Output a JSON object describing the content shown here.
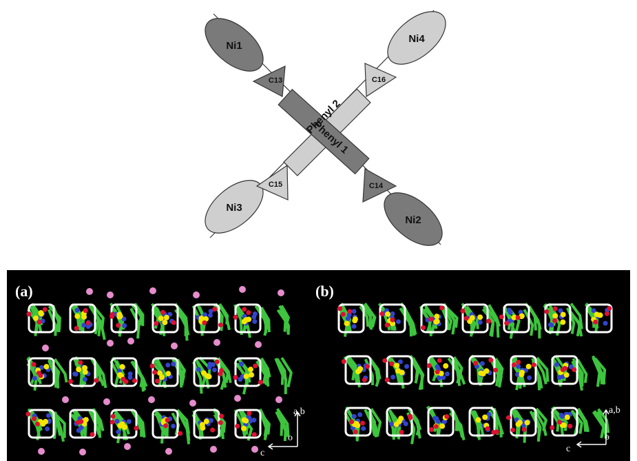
{
  "diagram": {
    "nodes": [
      {
        "label": "Ni1"
      },
      {
        "label": "Ni2"
      },
      {
        "label": "Ni3"
      },
      {
        "label": "Ni4"
      },
      {
        "label": "C13"
      },
      {
        "label": "C14"
      },
      {
        "label": "C15"
      },
      {
        "label": "C16"
      },
      {
        "label": "Phenyl 1"
      },
      {
        "label": "Phenyl 2"
      }
    ]
  },
  "panels": [
    {
      "label": "(a)",
      "axes": {
        "up": "a,b",
        "origin": "o",
        "left": "c"
      }
    },
    {
      "label": "(b)",
      "axes": {
        "up": "a,b",
        "origin": "o",
        "left": "c"
      }
    }
  ]
}
